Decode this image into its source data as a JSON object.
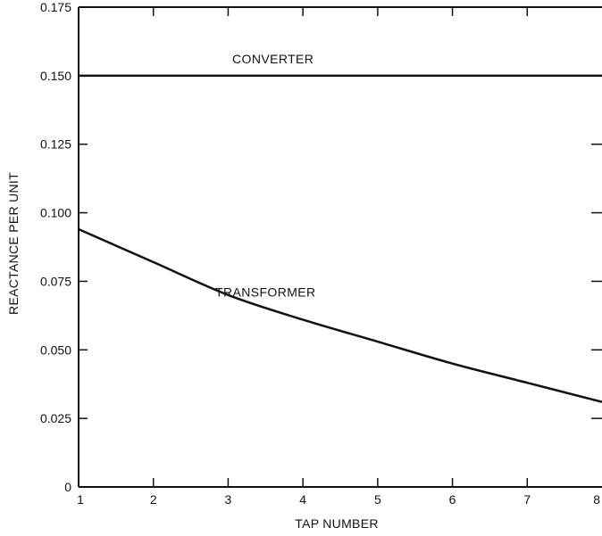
{
  "chart_data": {
    "type": "line",
    "xlabel": "TAP NUMBER",
    "ylabel": "REACTANCE PER UNIT",
    "xlim": [
      1,
      8
    ],
    "ylim": [
      0,
      0.175
    ],
    "grid": false,
    "x_ticks": [
      1,
      2,
      3,
      4,
      5,
      6,
      7,
      8
    ],
    "x_tick_labels": [
      "1",
      "2",
      "3",
      "4",
      "5",
      "6",
      "7",
      "8"
    ],
    "y_ticks": [
      0,
      0.025,
      0.05,
      0.075,
      0.1,
      0.125,
      0.15,
      0.175
    ],
    "y_tick_labels": [
      "0",
      "0.025",
      "0.050",
      "0.075",
      "0.100",
      "0.125",
      "0.150",
      "0.175"
    ],
    "x": [
      1,
      2,
      3,
      4,
      5,
      6,
      7,
      8
    ],
    "series": [
      {
        "name": "CONVERTER",
        "values": [
          0.15,
          0.15,
          0.15,
          0.15,
          0.15,
          0.15,
          0.15,
          0.15
        ],
        "label_at": [
          3.6,
          0.1545
        ]
      },
      {
        "name": "TRANSFORMER",
        "values": [
          0.094,
          0.082,
          0.07,
          0.061,
          0.053,
          0.045,
          0.038,
          0.031
        ],
        "label_at": [
          3.5,
          0.0695
        ]
      }
    ]
  }
}
